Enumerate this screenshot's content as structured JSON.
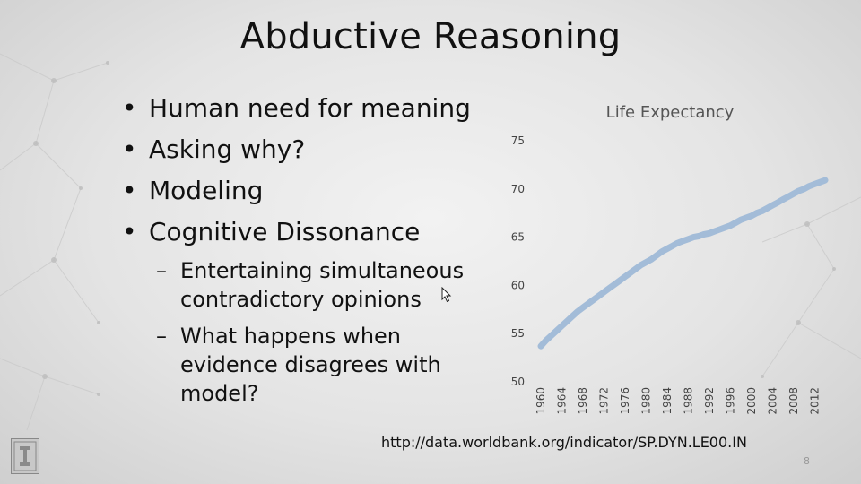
{
  "slide": {
    "title": "Abductive Reasoning",
    "bullets": [
      "Human need for meaning",
      "Asking why?",
      "Modeling",
      "Cognitive Dissonance"
    ],
    "sub_bullets": [
      "Entertaining simultaneous contradictory opinions",
      "What happens when evidence disagrees with model?"
    ],
    "source_url": "http://data.worldbank.org/indicator/SP.DYN.LE00.IN",
    "page_number": "8"
  },
  "colors": {
    "series": "#a3bcd8",
    "text": "#111111"
  },
  "chart_data": {
    "type": "line",
    "title": "Life Expectancy",
    "xlabel": "",
    "ylabel": "",
    "ylim": [
      50,
      75
    ],
    "y_ticks": [
      "75",
      "70",
      "65",
      "60",
      "55",
      "50"
    ],
    "x_ticks": [
      "1960",
      "1964",
      "1968",
      "1972",
      "1976",
      "1980",
      "1984",
      "1988",
      "1992",
      "1996",
      "2000",
      "2004",
      "2008",
      "2012"
    ],
    "grid": false,
    "legend": "none",
    "series": [
      {
        "x": [
          1960,
          1961,
          1962,
          1963,
          1964,
          1965,
          1966,
          1967,
          1968,
          1969,
          1970,
          1971,
          1972,
          1973,
          1974,
          1975,
          1976,
          1977,
          1978,
          1979,
          1980,
          1981,
          1982,
          1983,
          1984,
          1985,
          1986,
          1987,
          1988,
          1989,
          1990,
          1991,
          1992,
          1993,
          1994,
          1995,
          1996,
          1997,
          1998,
          1999,
          2000,
          2001,
          2002,
          2003,
          2004,
          2005,
          2006,
          2007,
          2008,
          2009,
          2010,
          2011,
          2012,
          2013,
          2014
        ],
        "values": [
          53.7,
          54.3,
          54.8,
          55.3,
          55.8,
          56.3,
          56.8,
          57.3,
          57.7,
          58.1,
          58.5,
          58.9,
          59.3,
          59.7,
          60.1,
          60.5,
          60.9,
          61.3,
          61.7,
          62.1,
          62.4,
          62.7,
          63.1,
          63.5,
          63.8,
          64.1,
          64.4,
          64.6,
          64.8,
          65.0,
          65.1,
          65.3,
          65.4,
          65.6,
          65.8,
          66.0,
          66.2,
          66.5,
          66.8,
          67.0,
          67.2,
          67.5,
          67.7,
          68.0,
          68.3,
          68.6,
          68.9,
          69.2,
          69.5,
          69.8,
          70.0,
          70.3,
          70.5,
          70.7,
          70.9
        ]
      }
    ]
  }
}
